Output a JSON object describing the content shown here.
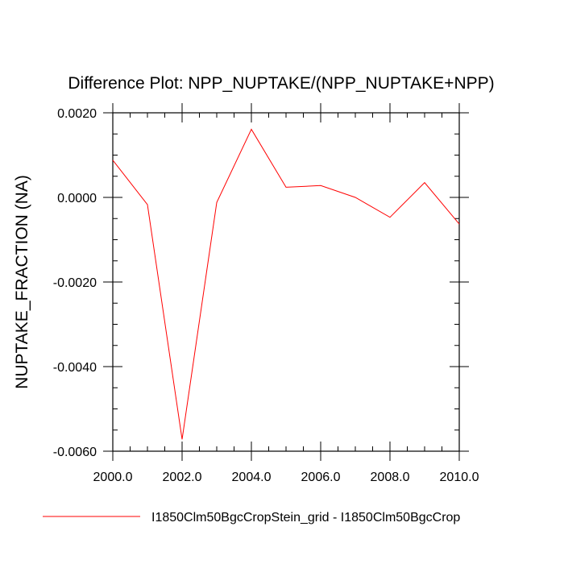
{
  "chart_data": {
    "type": "line",
    "title": "Difference Plot: NPP_NUPTAKE/(NPP_NUPTAKE+NPP)",
    "xlabel": "",
    "ylabel": "NUPTAKE_FRACTION  (NA)",
    "xlim": [
      2000.0,
      2010.0
    ],
    "ylim": [
      -0.006,
      0.002
    ],
    "x_ticks": [
      "2000.0",
      "2002.0",
      "2004.0",
      "2006.0",
      "2008.0",
      "2010.0"
    ],
    "y_ticks": [
      "0.0020",
      "0.0000",
      "-0.0020",
      "-0.0040",
      "-0.0060"
    ],
    "grid": false,
    "legend_position": "bottom",
    "series": [
      {
        "name": "I1850Clm50BgcCropStein_grid - I1850Clm50BgcCrop",
        "color": "#ff0000",
        "x": [
          2000,
          2001,
          2002,
          2003,
          2004,
          2005,
          2006,
          2007,
          2008,
          2009,
          2010
        ],
        "y": [
          0.00088,
          -0.00017,
          -0.00572,
          -0.00012,
          0.00161,
          0.00024,
          0.00028,
          0.0,
          -0.00047,
          0.00035,
          -0.00063
        ]
      }
    ]
  }
}
